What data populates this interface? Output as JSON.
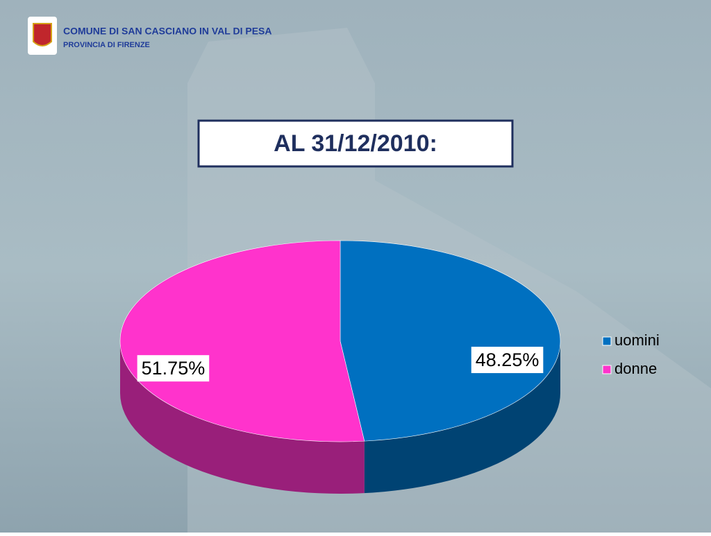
{
  "header": {
    "title": "COMUNE DI SAN CASCIANO IN VAL DI PESA",
    "subtitle": "PROVINCIA  DI FIRENZE"
  },
  "chart_data": {
    "type": "pie",
    "title": "AL 31/12/2010:",
    "categories": [
      "uomini",
      "donne"
    ],
    "values": [
      48.25,
      51.75
    ],
    "value_labels": [
      "48.25%",
      "51.75%"
    ],
    "colors": [
      "#0070c0",
      "#ff33cc"
    ],
    "legend": "right"
  }
}
